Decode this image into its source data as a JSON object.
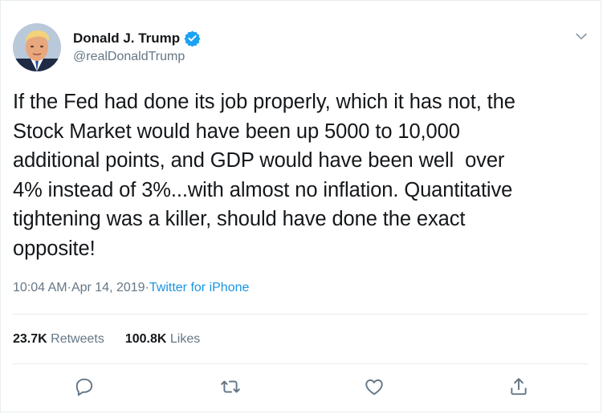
{
  "author": {
    "name": "Donald J. Trump",
    "handle": "@realDonaldTrump",
    "verified": true,
    "avatar_icon": "avatar-photo"
  },
  "tweet": {
    "text": "If the Fed had done its job properly, which it has not, the\nStock Market would have been up 5000 to 10,000\nadditional points, and GDP would have been well  over\n4% instead of 3%...with almost no inflation. Quantitative\ntightening was a killer, should have done the exact\nopposite!",
    "time": "10:04 AM",
    "date": "Apr 14, 2019",
    "source": "Twitter for iPhone",
    "separator": " · "
  },
  "stats": {
    "retweets_count": "23.7K",
    "retweets_label": "Retweets",
    "likes_count": "100.8K",
    "likes_label": "Likes"
  },
  "actions": {
    "reply_icon": "reply-icon",
    "retweet_icon": "retweet-icon",
    "like_icon": "like-icon",
    "share_icon": "share-icon"
  },
  "colors": {
    "text": "#14171a",
    "secondary": "#657786",
    "link": "#1b95e0",
    "border": "#e6ecf0",
    "verified": "#1da1f2"
  }
}
